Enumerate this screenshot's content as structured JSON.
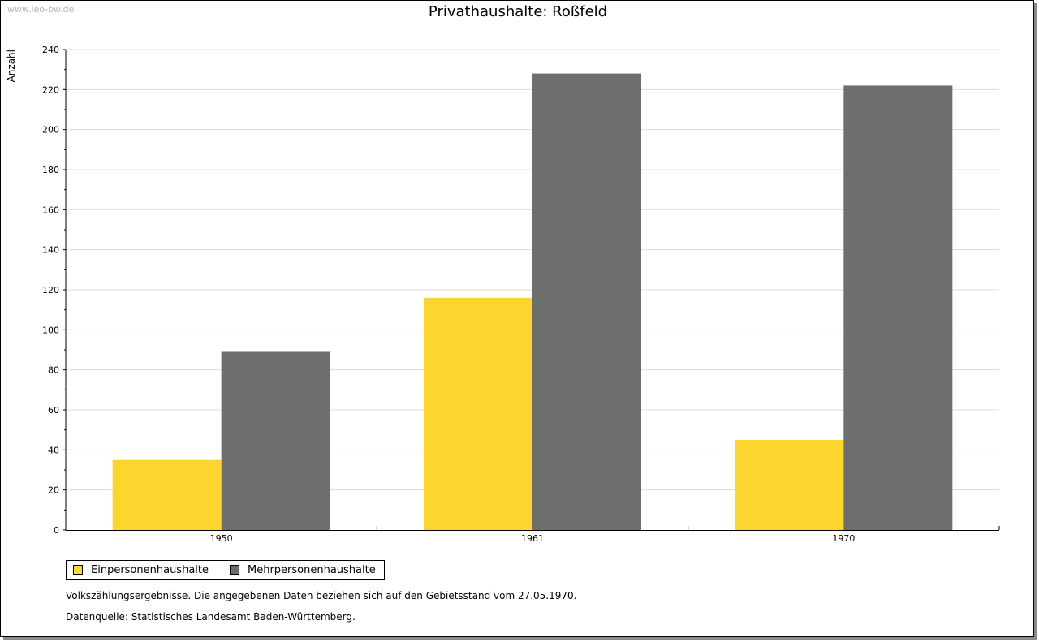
{
  "watermark": "www.leo-bw.de",
  "chart_data": {
    "type": "bar",
    "title": "Privathaushalte: Roßfeld",
    "ylabel": "Anzahl",
    "xlabel": "",
    "categories": [
      "1950",
      "1961",
      "1970"
    ],
    "series": [
      {
        "name": "Einpersonenhaushalte",
        "color": "#fdd62d",
        "values": [
          35,
          116,
          45
        ]
      },
      {
        "name": "Mehrpersonenhaushalte",
        "color": "#6e6e6e",
        "values": [
          89,
          228,
          222
        ]
      }
    ],
    "ylim": [
      0,
      240
    ],
    "yticks": [
      "0",
      "20",
      "40",
      "60",
      "80",
      "100",
      "120",
      "140",
      "160",
      "180",
      "200",
      "220",
      "240"
    ],
    "grid": true,
    "legend": "bottom-left"
  },
  "notes": {
    "line1": "Volkszählungsergebnisse. Die angegebenen Daten beziehen sich auf den Gebietsstand vom 27.05.1970.",
    "line2": "Datenquelle: Statistisches Landesamt Baden-Württemberg."
  }
}
